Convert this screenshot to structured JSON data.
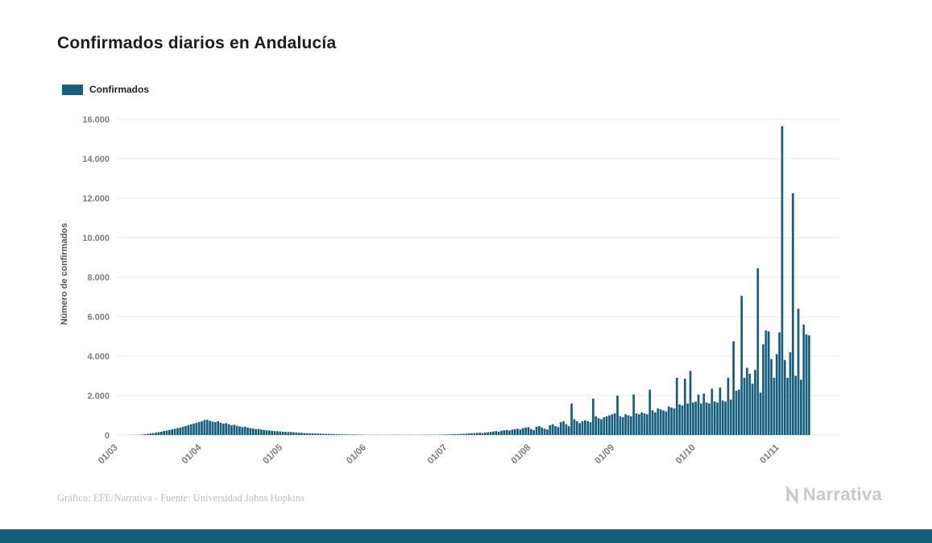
{
  "title": "Confirmados diarios en Andalucía",
  "legend": {
    "label": "Confirmados"
  },
  "footer": {
    "credit": "Gráfico: EFE/Narrativa - Fuente: Universidad Johns Hopkins",
    "brand": "Narrativa"
  },
  "colors": {
    "bar": "#135e7d",
    "grid": "#e8e8e8",
    "axis_text": "#7d7d7d",
    "title_text": "#1c1c1c",
    "footer_text": "#bcbcbc",
    "brand_text": "#c9c9c9",
    "bottom_strip": "#135e7d"
  },
  "chart_data": {
    "type": "bar",
    "title": "Confirmados diarios en Andalucía",
    "series_name": "Confirmados",
    "xlabel": "",
    "ylabel": "Número de confirmados",
    "ylim": [
      0,
      16000
    ],
    "grid": true,
    "legend_position": "top-left",
    "y_ticks": [
      0,
      2000,
      4000,
      6000,
      8000,
      10000,
      12000,
      14000,
      16000
    ],
    "y_tick_labels": [
      "0",
      "2.000",
      "4.000",
      "6.000",
      "8.000",
      "10.000",
      "12.000",
      "14.000",
      "16.000"
    ],
    "x_tick_labels": [
      "01/03",
      "01/04",
      "01/05",
      "01/06",
      "01/07",
      "01/08",
      "01/09",
      "01/10",
      "01/11"
    ],
    "x_tick_positions": [
      0,
      31,
      61,
      92,
      122,
      153,
      184,
      214,
      245
    ],
    "x_axis_total_days": 268,
    "values": [
      0,
      0,
      0,
      0,
      2,
      4,
      6,
      10,
      15,
      25,
      40,
      60,
      80,
      100,
      120,
      150,
      170,
      200,
      230,
      260,
      290,
      320,
      350,
      380,
      420,
      460,
      500,
      540,
      580,
      620,
      660,
      700,
      760,
      780,
      720,
      680,
      650,
      700,
      620,
      580,
      600,
      550,
      500,
      520,
      470,
      440,
      400,
      420,
      380,
      350,
      330,
      300,
      310,
      280,
      260,
      240,
      230,
      210,
      200,
      190,
      180,
      170,
      160,
      150,
      155,
      140,
      130,
      120,
      110,
      100,
      95,
      90,
      85,
      80,
      75,
      70,
      65,
      60,
      55,
      50,
      45,
      40,
      38,
      35,
      32,
      30,
      28,
      25,
      22,
      20,
      18,
      15,
      12,
      10,
      8,
      10,
      12,
      9,
      7,
      8,
      10,
      12,
      15,
      12,
      10,
      8,
      10,
      12,
      14,
      12,
      10,
      9,
      12,
      15,
      18,
      15,
      12,
      14,
      16,
      18,
      20,
      25,
      30,
      35,
      40,
      45,
      50,
      55,
      60,
      70,
      80,
      90,
      100,
      110,
      120,
      100,
      130,
      140,
      160,
      180,
      200,
      170,
      220,
      240,
      260,
      230,
      280,
      300,
      320,
      280,
      350,
      380,
      400,
      300,
      250,
      420,
      450,
      380,
      320,
      280,
      500,
      550,
      450,
      400,
      650,
      700,
      550,
      450,
      1600,
      800,
      700,
      600,
      700,
      750,
      700,
      650,
      1850,
      950,
      850,
      800,
      900,
      950,
      1000,
      1050,
      1100,
      2000,
      950,
      900,
      1050,
      1000,
      950,
      2050,
      1100,
      1050,
      1150,
      1100,
      1050,
      2300,
      1250,
      1150,
      1350,
      1300,
      1250,
      1200,
      1450,
      1400,
      1350,
      2900,
      1550,
      1500,
      2850,
      1600,
      3250,
      1650,
      1700,
      2050,
      1600,
      2100,
      1650,
      1600,
      2350,
      1700,
      1650,
      2400,
      1750,
      1700,
      2900,
      1800,
      4750,
      2250,
      2300,
      7050,
      2900,
      3400,
      3100,
      2600,
      3300,
      8450,
      2150,
      4600,
      5300,
      5250,
      3850,
      2900,
      4100,
      5200,
      15650,
      3800,
      2900,
      4200,
      12250,
      3000,
      6400,
      2800,
      5600,
      5100,
      5050
    ]
  }
}
